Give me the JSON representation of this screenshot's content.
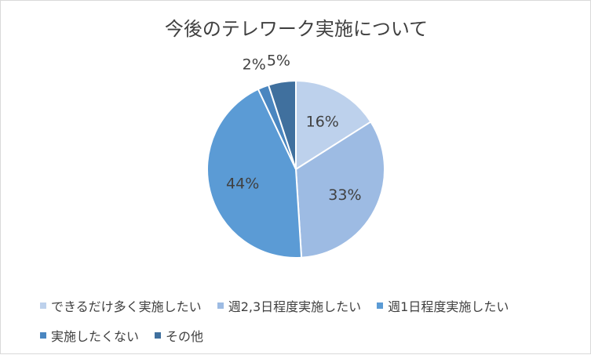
{
  "chart_data": {
    "type": "pie",
    "title": "今後のテレワーク実施について",
    "categories": [
      "できるだけ多く実施したい",
      "週2,3日程度実施したい",
      "週1日程度実施したい",
      "実施したくない",
      "その他"
    ],
    "values": [
      16,
      33,
      44,
      2,
      5
    ],
    "labels": [
      "16%",
      "33%",
      "44%",
      "2%",
      "5%"
    ],
    "colors": [
      "#bdd1ec",
      "#9dbbe3",
      "#5b9bd5",
      "#4a86c0",
      "#40709e"
    ],
    "legend_position": "bottom"
  }
}
